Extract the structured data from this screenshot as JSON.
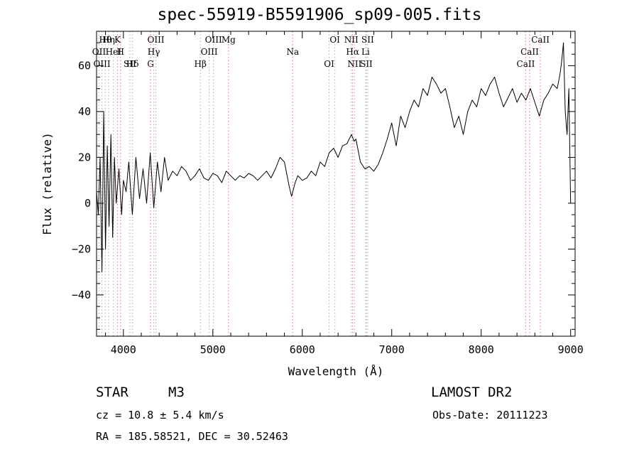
{
  "chart_data": {
    "type": "line",
    "title": "spec-55919-B5591906_sp09-005.fits",
    "xlabel": "Wavelength (Å)",
    "ylabel": "Flux (relative)",
    "xlim": [
      3700,
      9050
    ],
    "ylim": [
      -58,
      75
    ],
    "xticks": [
      4000,
      5000,
      6000,
      7000,
      8000,
      9000
    ],
    "yticks": [
      -40,
      -20,
      0,
      20,
      40,
      60
    ],
    "grid": false,
    "series": [
      {
        "name": "",
        "x": [
          3700,
          3720,
          3740,
          3760,
          3780,
          3800,
          3820,
          3840,
          3860,
          3880,
          3900,
          3920,
          3950,
          3980,
          4000,
          4030,
          4060,
          4100,
          4140,
          4180,
          4220,
          4260,
          4300,
          4340,
          4380,
          4420,
          4460,
          4500,
          4550,
          4600,
          4650,
          4700,
          4750,
          4800,
          4850,
          4900,
          4950,
          5000,
          5050,
          5100,
          5150,
          5200,
          5250,
          5300,
          5350,
          5400,
          5450,
          5500,
          5550,
          5600,
          5650,
          5700,
          5750,
          5800,
          5850,
          5880,
          5900,
          5920,
          5950,
          6000,
          6050,
          6100,
          6150,
          6200,
          6250,
          6300,
          6350,
          6400,
          6450,
          6500,
          6550,
          6580,
          6600,
          6650,
          6700,
          6750,
          6800,
          6850,
          6900,
          6950,
          7000,
          7050,
          7100,
          7150,
          7200,
          7250,
          7300,
          7350,
          7400,
          7450,
          7500,
          7550,
          7600,
          7650,
          7700,
          7750,
          7800,
          7850,
          7900,
          7950,
          8000,
          8050,
          8100,
          8150,
          8200,
          8250,
          8300,
          8350,
          8400,
          8450,
          8500,
          8550,
          8600,
          8650,
          8700,
          8750,
          8800,
          8850,
          8880,
          8900,
          8920,
          8940,
          8960,
          8980,
          9000
        ],
        "y": [
          5,
          -5,
          20,
          -30,
          40,
          -20,
          25,
          -10,
          30,
          -15,
          20,
          0,
          15,
          -5,
          10,
          5,
          18,
          -5,
          20,
          2,
          15,
          0,
          22,
          -2,
          18,
          5,
          20,
          10,
          14,
          12,
          16,
          14,
          10,
          12,
          15,
          11,
          10,
          13,
          12,
          9,
          14,
          12,
          10,
          12,
          11,
          13,
          12,
          10,
          12,
          14,
          11,
          15,
          20,
          18,
          8,
          3,
          6,
          9,
          12,
          10,
          11,
          14,
          12,
          18,
          16,
          22,
          24,
          20,
          25,
          26,
          30,
          27,
          28,
          18,
          15,
          16,
          14,
          17,
          22,
          28,
          35,
          25,
          38,
          33,
          40,
          45,
          42,
          50,
          47,
          55,
          52,
          48,
          50,
          42,
          33,
          38,
          30,
          40,
          45,
          42,
          50,
          47,
          52,
          55,
          48,
          42,
          46,
          50,
          44,
          48,
          45,
          50,
          44,
          38,
          45,
          48,
          52,
          50,
          56,
          62,
          70,
          40,
          30,
          50,
          0
        ],
        "strokeWidth": 1
      }
    ],
    "lines": [
      {
        "name": "Hθ",
        "x": 3798,
        "color": "#b9b9b9"
      },
      {
        "name": "OII",
        "x": 3727,
        "color": "#b9b9b9"
      },
      {
        "name": "OIII",
        "x": 3760,
        "color": "#b9b9b9"
      },
      {
        "name": "Hη",
        "x": 3835,
        "color": "#b9b9b9"
      },
      {
        "name": "HeI",
        "x": 3889,
        "color": "#b9b9b9"
      },
      {
        "name": "SII",
        "x": 4072,
        "color": "#b9b9b9"
      },
      {
        "name": "K",
        "x": 3934,
        "color": "#f08080"
      },
      {
        "name": "H",
        "x": 3968,
        "color": "#f08080"
      },
      {
        "name": "Hδ",
        "x": 4102,
        "color": "#b9b9b9"
      },
      {
        "name": "OIII",
        "x": 4363,
        "color": "#b9b9b9"
      },
      {
        "name": "Hγ",
        "x": 4340,
        "color": "#b9b9b9"
      },
      {
        "name": "G",
        "x": 4304,
        "color": "#f08080"
      },
      {
        "name": "OIII",
        "x": 5007,
        "color": "#b9b9b9"
      },
      {
        "name": "OIII",
        "x": 4959,
        "color": "#b9b9b9"
      },
      {
        "name": "Hβ",
        "x": 4861,
        "color": "#b9b9b9"
      },
      {
        "name": "Mg",
        "x": 5175,
        "color": "#f08080"
      },
      {
        "name": "Na",
        "x": 5893,
        "color": "#f08080"
      },
      {
        "name": "OI",
        "x": 6300,
        "color": "#b9b9b9"
      },
      {
        "name": "OI",
        "x": 6364,
        "color": "#b9b9b9"
      },
      {
        "name": "Hα",
        "x": 6563,
        "color": "#f08080"
      },
      {
        "name": "SII",
        "x": 6716,
        "color": "#b9b9b9"
      },
      {
        "name": "NII",
        "x": 6548,
        "color": "#b9b9b9"
      },
      {
        "name": "Li",
        "x": 6708,
        "color": "#b9b9b9"
      },
      {
        "name": "NII",
        "x": 6584,
        "color": "#b9b9b9"
      },
      {
        "name": "SII",
        "x": 6731,
        "color": "#b9b9b9"
      },
      {
        "name": "CaII",
        "x": 8542,
        "color": "#f08080"
      },
      {
        "name": "CaII",
        "x": 8498,
        "color": "#f08080"
      },
      {
        "name": "CaII",
        "x": 8662,
        "color": "#f08080"
      }
    ]
  },
  "info": {
    "class": "STAR",
    "subclass": "M3",
    "survey": "LAMOST DR2",
    "cz": "cz = 10.8 ± 5.4 km/s",
    "obsdate": "Obs-Date: 20111223",
    "radec": "RA = 185.58521, DEC =  30.52463"
  }
}
